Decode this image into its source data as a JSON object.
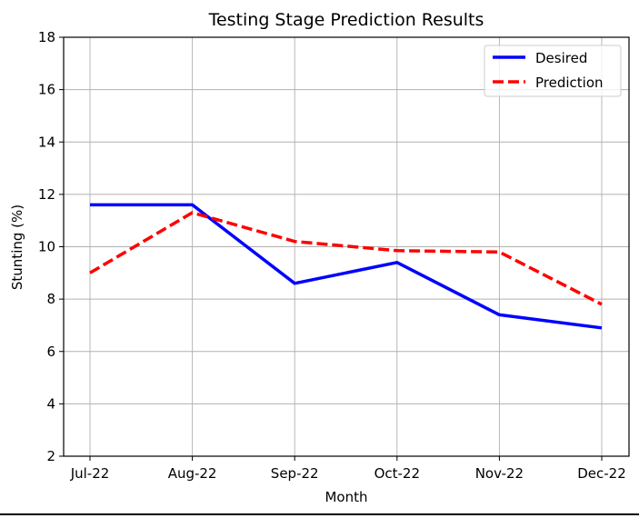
{
  "chart_data": {
    "type": "line",
    "title": "Testing Stage Prediction Results",
    "xlabel": "Month",
    "ylabel": "Stunting (%)",
    "categories": [
      "Jul-22",
      "Aug-22",
      "Sep-22",
      "Oct-22",
      "Nov-22",
      "Dec-22"
    ],
    "ylim": [
      2,
      18
    ],
    "yticks": [
      2,
      4,
      6,
      8,
      10,
      12,
      14,
      16,
      18
    ],
    "grid": true,
    "legend_position": "top-right",
    "series": [
      {
        "name": "Desired",
        "values": [
          11.6,
          11.6,
          8.6,
          9.4,
          7.4,
          6.9
        ],
        "color": "#0000ff",
        "style": "solid"
      },
      {
        "name": "Prediction",
        "values": [
          9.0,
          11.3,
          10.2,
          9.85,
          9.8,
          7.8
        ],
        "color": "#ff0000",
        "style": "dashed"
      }
    ]
  }
}
